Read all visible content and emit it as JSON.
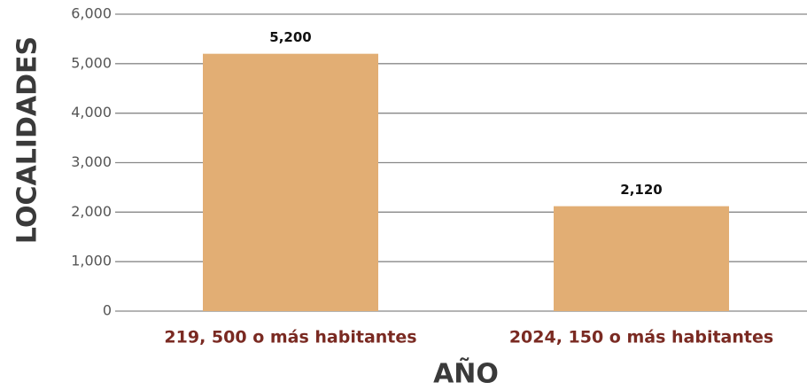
{
  "chart_data": {
    "type": "bar",
    "categories": [
      "219, 500 o más habitantes",
      "2024, 150 o más habitantes"
    ],
    "values": [
      5200,
      2120
    ],
    "value_labels": [
      "5,200",
      "2,120"
    ],
    "color": "#e2ae74",
    "ylim": [
      0,
      6000
    ],
    "yticks": [
      0,
      {
        "value": 1000,
        "label": "1,000"
      },
      {
        "value": 2000,
        "label": "2,000"
      },
      {
        "value": 3000,
        "label": "3,000"
      },
      {
        "value": 4000,
        "label": "4,000"
      },
      {
        "value": 5000,
        "label": "5,000"
      },
      {
        "value": 6000,
        "label": "6,000"
      }
    ],
    "grid": true,
    "x_label": "AÑO",
    "y_label": "LOCALIDADES"
  }
}
